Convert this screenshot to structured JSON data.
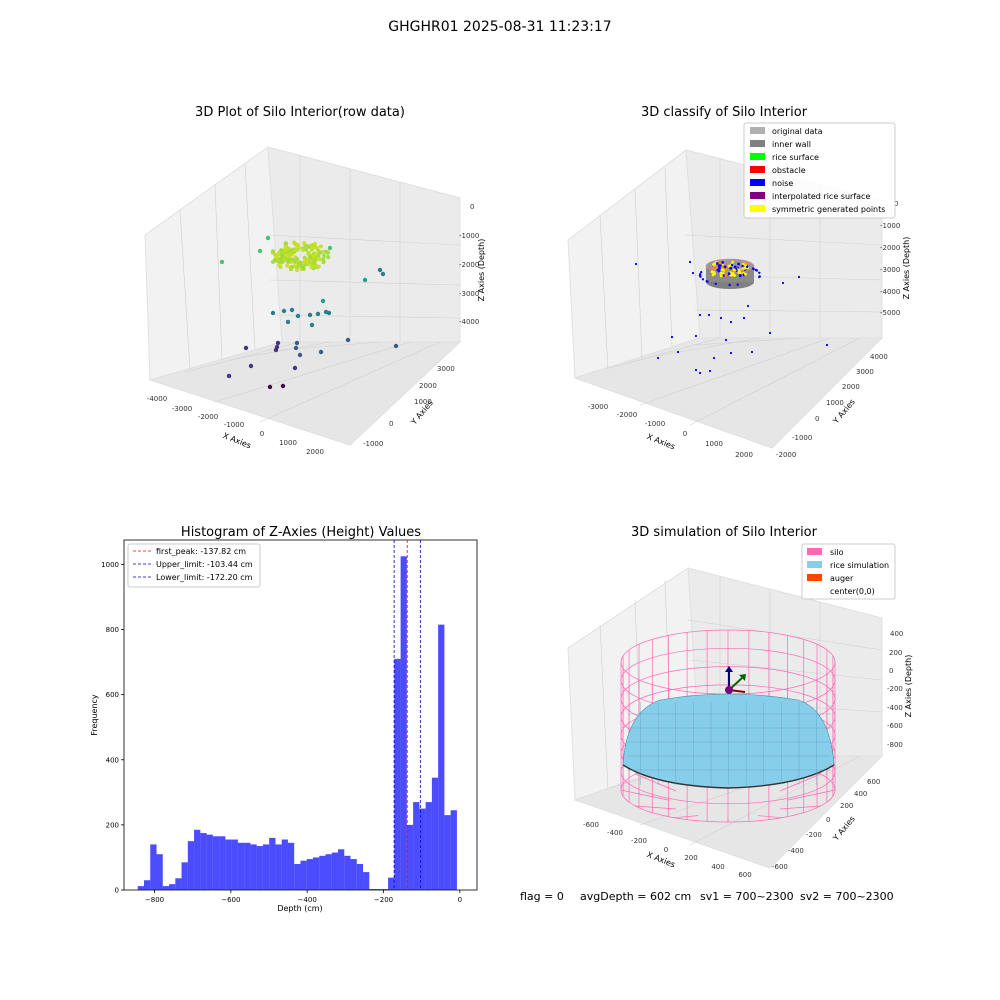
{
  "figure": {
    "suptitle": "GHGHR01 2025-08-31 11:23:17",
    "footer": {
      "flag": "flag = 0",
      "avg": "avgDepth = 602 cm",
      "sv1": "sv1 = 700~2300",
      "sv2": "sv2 = 700~2300"
    }
  },
  "chart_data": [
    {
      "id": "raw3d",
      "type": "scatter",
      "dimensions": 3,
      "title": "3D Plot of Silo Interior(row data)",
      "xlabel": "X Axies",
      "ylabel": "Y Axies",
      "zlabel": "Z Axies (Depth)",
      "x_ticks": [
        "-4000",
        "-3000",
        "-2000",
        "-1000",
        "0",
        "1000",
        "2000"
      ],
      "y_ticks": [
        "-1000",
        "0",
        "1000",
        "2000",
        "3000"
      ],
      "z_ticks": [
        "0",
        "-1000",
        "-2000",
        "-3000",
        "-4000"
      ],
      "colormap": "viridis",
      "grid": true
    },
    {
      "id": "classify3d",
      "type": "scatter",
      "dimensions": 3,
      "title": "3D classify of Silo Interior",
      "xlabel": "X Axies",
      "ylabel": "Y Axies",
      "zlabel": "Z Axies (Depth)",
      "x_ticks": [
        "-3000",
        "-2000",
        "-1000",
        "0",
        "1000",
        "2000"
      ],
      "y_ticks": [
        "-2000",
        "-1000",
        "0",
        "1000",
        "2000",
        "3000",
        "4000"
      ],
      "z_ticks": [
        "0",
        "-1000",
        "-2000",
        "-3000",
        "-4000",
        "-5000"
      ],
      "legend_position": "upper-right",
      "legend": [
        {
          "label": "original data",
          "color": "#b0b0b0"
        },
        {
          "label": "inner wall",
          "color": "#808080"
        },
        {
          "label": "rice surface",
          "color": "#00ff00"
        },
        {
          "label": "obstacle",
          "color": "#ff0000"
        },
        {
          "label": "noise",
          "color": "#0000ff"
        },
        {
          "label": "interpolated rice surface",
          "color": "#800080"
        },
        {
          "label": "symmetric generated points",
          "color": "#ffff00"
        }
      ],
      "grid": true
    },
    {
      "id": "histogram",
      "type": "bar",
      "title": "Histogram of Z-Axies (Height) Values",
      "xlabel": "Depth (cm)",
      "ylabel": "Frequency",
      "xlim": [
        -880,
        45
      ],
      "ylim": [
        0,
        1075
      ],
      "x_ticks": [
        -800,
        -600,
        -400,
        -200,
        0
      ],
      "y_ticks": [
        0,
        200,
        400,
        600,
        800,
        1000
      ],
      "bin_start": -844,
      "bin_width": 16.4,
      "counts": [
        12,
        30,
        140,
        110,
        12,
        18,
        36,
        85,
        150,
        185,
        175,
        170,
        165,
        165,
        155,
        155,
        145,
        145,
        140,
        135,
        140,
        160,
        140,
        155,
        145,
        80,
        90,
        95,
        100,
        105,
        110,
        115,
        125,
        105,
        95,
        80,
        55,
        3,
        3,
        3,
        38,
        710,
        1025,
        200,
        270,
        250,
        270,
        345,
        815,
        230,
        245
      ],
      "bar_color": "#0000ff",
      "vlines": [
        {
          "label": "first_peak: -137.82 cm",
          "x": -137.82,
          "color": "#ff0000"
        },
        {
          "label": "Upper_limit: -103.44 cm",
          "x": -103.44,
          "color": "#0000cc"
        },
        {
          "label": "Lower_limit: -172.20 cm",
          "x": -172.2,
          "color": "#0000cc"
        }
      ],
      "legend_position": "upper-left"
    },
    {
      "id": "sim3d",
      "type": "surface",
      "dimensions": 3,
      "title": "3D simulation of Silo Interior",
      "xlabel": "X Axies",
      "ylabel": "Y Axies",
      "zlabel": "Z Axies (Depth)",
      "x_ticks": [
        "-600",
        "-400",
        "-200",
        "0",
        "200",
        "400",
        "600"
      ],
      "y_ticks": [
        "-600",
        "-400",
        "-200",
        "0",
        "200",
        "400",
        "600"
      ],
      "z_ticks": [
        "400",
        "200",
        "0",
        "-200",
        "-400",
        "-600",
        "-800"
      ],
      "legend_position": "upper-right",
      "legend": [
        {
          "label": "silo",
          "color": "#ff69b4"
        },
        {
          "label": "rice simulation",
          "color": "#87ceeb"
        },
        {
          "label": "auger",
          "color": "#ff4500"
        },
        {
          "label": "center(0,0)",
          "color": ""
        }
      ],
      "grid": true
    }
  ]
}
